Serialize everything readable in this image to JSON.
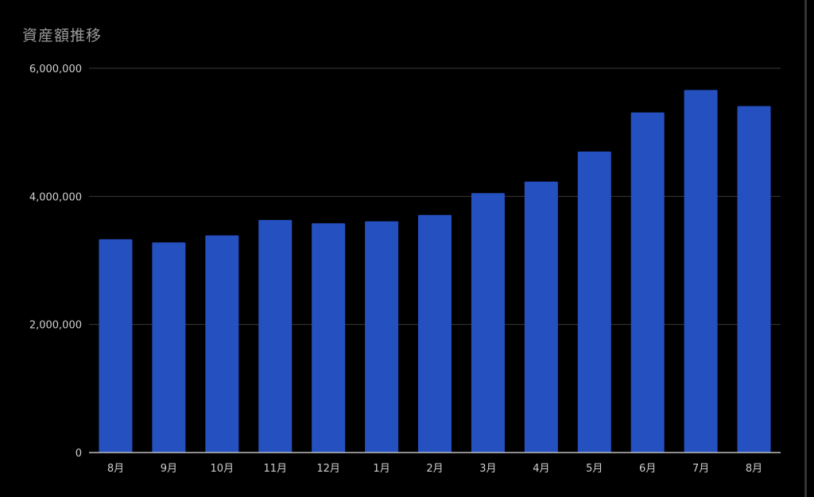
{
  "chart_data": {
    "type": "bar",
    "title": "資産額推移",
    "xlabel": "",
    "ylabel": "",
    "ylim": [
      0,
      6000000
    ],
    "yticks": [
      "0",
      "2,000,000",
      "4,000,000",
      "6,000,000"
    ],
    "ytick_values": [
      0,
      2000000,
      4000000,
      6000000
    ],
    "categories": [
      "8月",
      "9月",
      "10月",
      "11月",
      "12月",
      "1月",
      "2月",
      "3月",
      "4月",
      "5月",
      "6月",
      "7月",
      "8月"
    ],
    "values": [
      3330000,
      3280000,
      3390000,
      3630000,
      3580000,
      3610000,
      3710000,
      4050000,
      4230000,
      4700000,
      5310000,
      5660000,
      5410000
    ],
    "grid": true,
    "legend": "none",
    "colors": {
      "bar": "#2550c0",
      "background": "#000000",
      "grid": "#3a3a3a",
      "axis": "#bdbdbd",
      "text": "#cfcfcf",
      "title": "#9a9a9a"
    }
  }
}
